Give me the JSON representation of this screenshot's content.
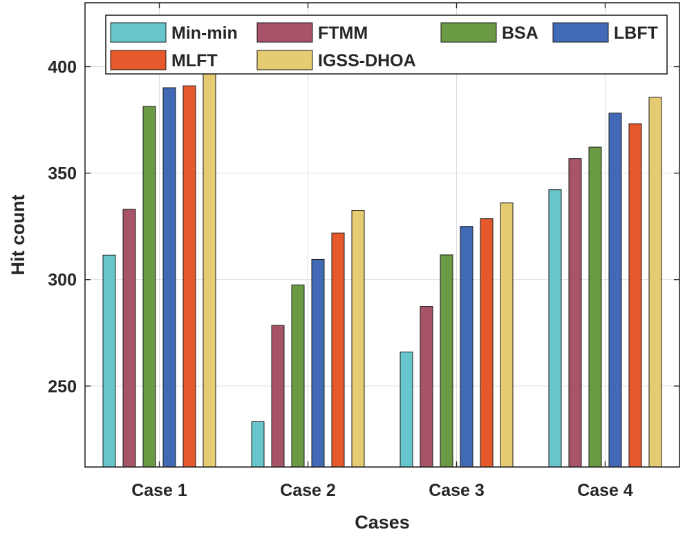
{
  "chart_data": {
    "type": "bar",
    "title": "",
    "xlabel": "Cases",
    "ylabel": "Hit count",
    "categories": [
      "Case 1",
      "Case 2",
      "Case 3",
      "Case 4"
    ],
    "ylim": [
      212,
      430
    ],
    "yticks": [
      250,
      300,
      350,
      400
    ],
    "grid": true,
    "legend_position": "top",
    "series": [
      {
        "name": "Min-min",
        "color": "#66c6cc",
        "values": [
          311.5,
          233.3,
          266.0,
          342.2
        ]
      },
      {
        "name": "FTMM",
        "color": "#a85468",
        "values": [
          333.0,
          278.5,
          287.4,
          356.8
        ]
      },
      {
        "name": "BSA",
        "color": "#6a9a44",
        "values": [
          381.3,
          297.5,
          311.6,
          362.2
        ]
      },
      {
        "name": "LBFT",
        "color": "#4169b5",
        "values": [
          390.1,
          309.5,
          325.0,
          378.2
        ]
      },
      {
        "name": "MLFT",
        "color": "#e5592c",
        "values": [
          391.0,
          321.9,
          328.6,
          373.2
        ]
      },
      {
        "name": "IGSS-DHOA",
        "color": "#e5cb72",
        "values": [
          396.9,
          332.5,
          336.0,
          385.6
        ]
      }
    ]
  }
}
